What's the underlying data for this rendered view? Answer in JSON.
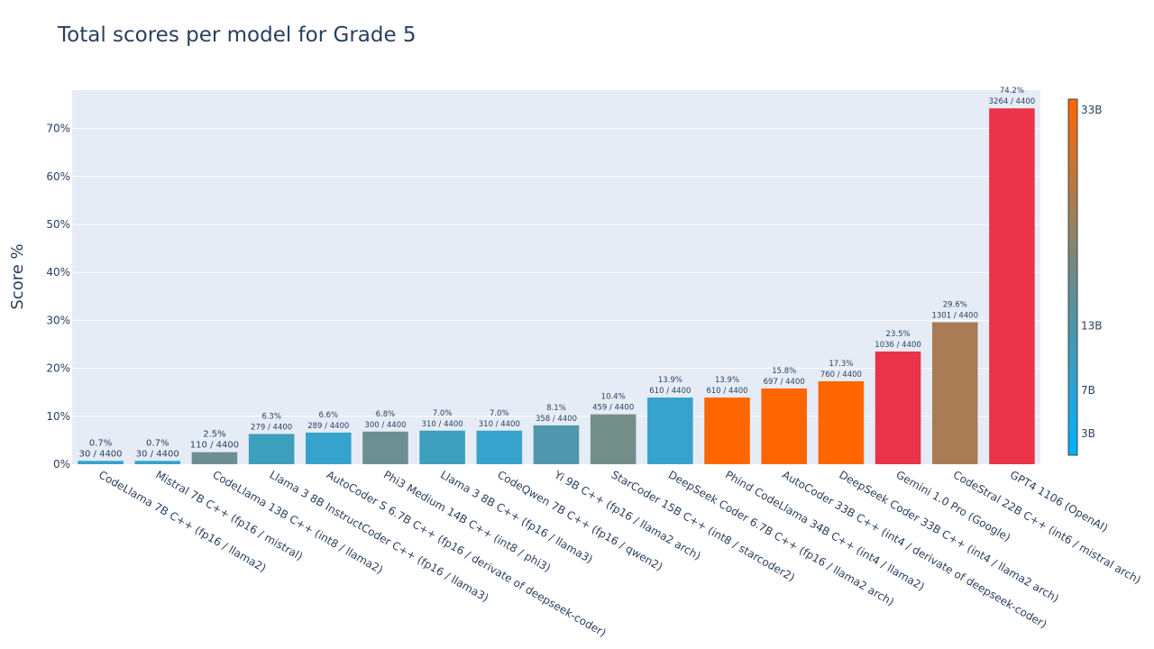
{
  "chart_data": {
    "type": "bar",
    "title": "Total scores per model for Grade 5",
    "xlabel": "",
    "ylabel": "Score %",
    "ylim": [
      0,
      78
    ],
    "yticks": [
      0,
      10,
      20,
      30,
      40,
      50,
      60,
      70
    ],
    "ytick_labels": [
      "0%",
      "10%",
      "20%",
      "30%",
      "40%",
      "50%",
      "60%",
      "70%"
    ],
    "categories": [
      "CodeLlama 7B C++ (fp16 / llama2)",
      "Mistral 7B C++ (fp16 / mistral)",
      "CodeLlama 13B C++ (int8 / llama2)",
      "Llama 3 8B InstructCoder C++ (fp16 / llama3)",
      "AutoCoder S 6.7B C++ (fp16 / derivate of deepseek-coder)",
      "Phi3 Medium 14B C++ (int8 / phi3)",
      "Llama 3 8B C++ (fp16 / llama3)",
      "CodeQwen 7B C++ (fp16 / qwen2)",
      "Yi 9B C++ (fp16 / llama2 arch)",
      "StarCoder 15B C++ (int8 / starcoder2)",
      "DeepSeek Coder 6.7B C++ (fp16 / llama2 arch)",
      "Phind CodeLlama 34B C++ (int4 / llama2)",
      "AutoCoder 33B C++ (int4 / derivate of deepseek-coder)",
      "DeepSeek Coder 33B C++ (int4 / llama2 arch)",
      "Gemini 1.0 Pro (Google)",
      "CodeStral 22B C++ (int6 / mistral arch)",
      "GPT4 1106 (OpenAI)"
    ],
    "values": [
      0.7,
      0.7,
      2.5,
      6.3,
      6.6,
      6.8,
      7.0,
      7.0,
      8.1,
      10.4,
      13.9,
      13.9,
      15.8,
      17.3,
      23.5,
      29.6,
      74.2
    ],
    "percent_labels": [
      "0.7%",
      "0.7%",
      "2.5%",
      "6.3%",
      "6.6%",
      "6.8%",
      "7.0%",
      "7.0%",
      "8.1%",
      "10.4%",
      "13.9%",
      "13.9%",
      "15.8%",
      "17.3%",
      "23.5%",
      "29.6%",
      "74.2%"
    ],
    "score_labels": [
      "30 / 4400",
      "30 / 4400",
      "110 / 4400",
      "279 / 4400",
      "289 / 4400",
      "300 / 4400",
      "310 / 4400",
      "310 / 4400",
      "358 / 4400",
      "459 / 4400",
      "610 / 4400",
      "610 / 4400",
      "697 / 4400",
      "760 / 4400",
      "1036 / 4400",
      "1301 / 4400",
      "3264 / 4400"
    ],
    "bar_colors": [
      "#35a3cc",
      "#35a3cc",
      "#6d8f93",
      "#3d9ebd",
      "#35a3cc",
      "#6d8f93",
      "#3d9ebd",
      "#35a3cc",
      "#4f97ac",
      "#738e88",
      "#35a3cc",
      "#ff6600",
      "#ff6600",
      "#ff6600",
      "#eb3349",
      "#a97c55",
      "#eb3349"
    ],
    "colorbar": {
      "min": 1,
      "max": 34,
      "ticks": [
        3,
        7,
        13,
        33
      ],
      "tick_labels": [
        "3B",
        "7B",
        "13B",
        "33B"
      ],
      "colors": [
        "#00b0ff",
        "#6a8c8a",
        "#ff6600"
      ]
    },
    "plot_background": "#e5ecf6",
    "grid": true
  }
}
